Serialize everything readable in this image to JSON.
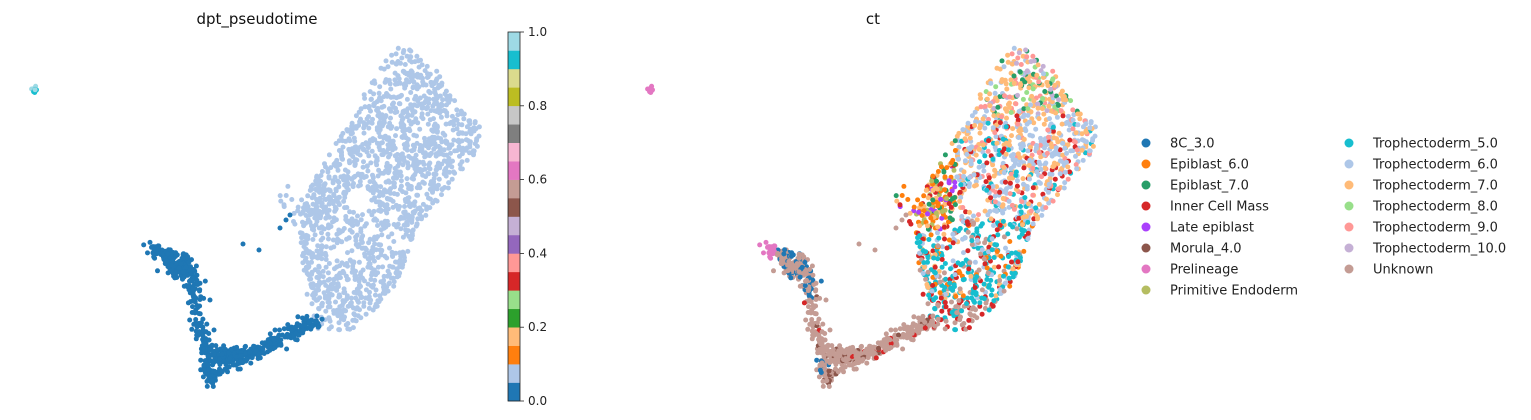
{
  "chart_data": [
    {
      "type": "scatter",
      "title": "dpt_pseudotime",
      "xlabel": "",
      "ylabel": "",
      "colorbar": {
        "vmin": 0.0,
        "vmax": 1.0,
        "ticks": [
          "0.0",
          "0.2",
          "0.4",
          "0.6",
          "0.8",
          "1.0"
        ],
        "colormap": "tab20",
        "colors": [
          "#1f77b4",
          "#aec7e8",
          "#ff7f0e",
          "#ffbb78",
          "#2ca02c",
          "#98df8a",
          "#d62728",
          "#ff9896",
          "#9467bd",
          "#c5b0d5",
          "#8c564b",
          "#c49c94",
          "#e377c2",
          "#f7b6d2",
          "#7f7f7f",
          "#c7c7c7",
          "#bcbd22",
          "#dbdb8d",
          "#17becf",
          "#9edae5"
        ]
      },
      "series": [
        {
          "value_range": [
            0.0,
            0.05
          ],
          "color": "#1f77b4",
          "region": "lower-left branch"
        },
        {
          "value_range": [
            0.05,
            0.1
          ],
          "color": "#aec7e8",
          "region": "main body"
        }
      ],
      "grid": false
    },
    {
      "type": "scatter",
      "title": "ct",
      "xlabel": "",
      "ylabel": "",
      "legend_position": "right",
      "grid": false,
      "legend": [
        {
          "name": "8C_3.0",
          "color": "#1f77b4"
        },
        {
          "name": "Epiblast_6.0",
          "color": "#ff7f0e"
        },
        {
          "name": "Epiblast_7.0",
          "color": "#279e68"
        },
        {
          "name": "Inner Cell Mass",
          "color": "#d62728"
        },
        {
          "name": "Late epiblast",
          "color": "#aa40fc"
        },
        {
          "name": "Morula_4.0",
          "color": "#8c564b"
        },
        {
          "name": "Prelineage",
          "color": "#e377c2"
        },
        {
          "name": "Primitive Endoderm",
          "color": "#b5bd61"
        },
        {
          "name": "Trophectoderm_5.0",
          "color": "#17becf"
        },
        {
          "name": "Trophectoderm_6.0",
          "color": "#aec7e8"
        },
        {
          "name": "Trophectoderm_7.0",
          "color": "#ffbb78"
        },
        {
          "name": "Trophectoderm_8.0",
          "color": "#98df8a"
        },
        {
          "name": "Trophectoderm_9.0",
          "color": "#ff9896"
        },
        {
          "name": "Trophectoderm_10.0",
          "color": "#c5b0d5"
        },
        {
          "name": "Unknown",
          "color": "#c49c94"
        }
      ]
    }
  ]
}
